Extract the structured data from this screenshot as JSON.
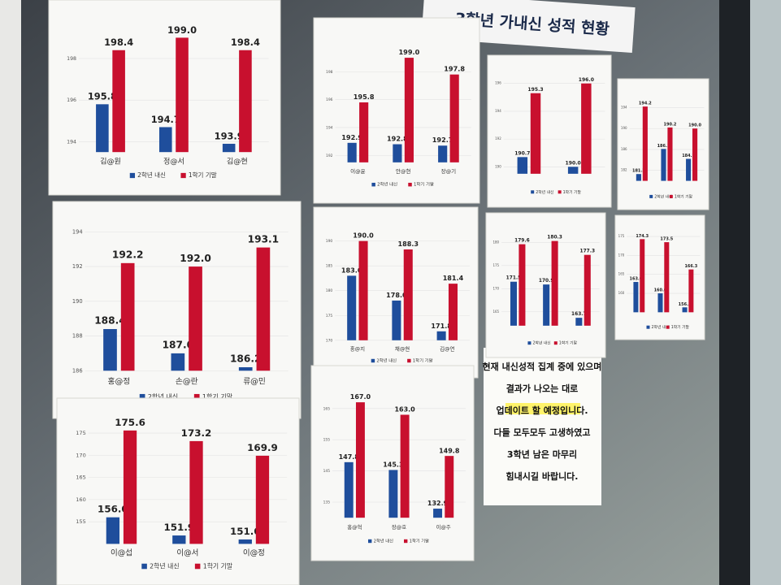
{
  "sign": {
    "text": "3학년 가내신 성적 현황"
  },
  "notice": {
    "lines": [
      "현재 내신성적 집계 중에 있으며",
      "결과가 나오는 대로",
      "업데이트 할 예정입니다.",
      "다들 모두모두 고생하였고",
      "3학년 남은 마무리",
      "힘내시길 바랍니다."
    ]
  },
  "chart_data": [
    {
      "type": "bar",
      "categories": [
        "김@원",
        "정@서",
        "김@현"
      ],
      "ylim": [
        193.5,
        199.5
      ],
      "yticks": [
        194,
        196,
        198
      ],
      "legend": "bottom",
      "series": [
        {
          "name": "2학년 내신",
          "color": "#1f4e9c",
          "values": [
            195.8,
            194.7,
            193.9
          ],
          "value_labels": [
            "195.8",
            "194.7",
            "193.9"
          ]
        },
        {
          "name": "1학기 기말",
          "color": "#c8102e",
          "values": [
            198.4,
            199.0,
            198.4
          ],
          "value_labels": [
            "198.4",
            "199.0",
            "198.4"
          ]
        }
      ]
    },
    {
      "type": "bar",
      "categories": [
        "이@윤",
        "안@현",
        "장@기"
      ],
      "ylim": [
        191.5,
        200
      ],
      "yticks": [
        192,
        194,
        196,
        198
      ],
      "legend": "bottom",
      "series": [
        {
          "name": "2학년 내신",
          "color": "#1f4e9c",
          "values": [
            192.9,
            192.8,
            192.7
          ],
          "value_labels": [
            "192.9",
            "192.8",
            "192.7"
          ]
        },
        {
          "name": "1학기 기말",
          "color": "#c8102e",
          "values": [
            195.8,
            199.0,
            197.8
          ],
          "value_labels": [
            "195.8",
            "199.0",
            "197.8"
          ]
        }
      ]
    },
    {
      "type": "bar",
      "categories": [
        null,
        null
      ],
      "ylim": [
        189.5,
        196.5
      ],
      "yticks": [
        190,
        192,
        194,
        196
      ],
      "legend": "bottom",
      "series": [
        {
          "name": "2학년 내신",
          "color": "#1f4e9c",
          "values": [
            190.7,
            190.0
          ],
          "value_labels": [
            "190.7",
            "190.0"
          ]
        },
        {
          "name": "1학기 기말",
          "color": "#c8102e",
          "values": [
            195.3,
            196.0
          ],
          "value_labels": [
            "195.3",
            "196.0"
          ]
        }
      ]
    },
    {
      "type": "bar",
      "categories": [
        "홍@정",
        "손@란",
        "류@민"
      ],
      "ylim": [
        186,
        194
      ],
      "yticks": [
        186,
        188,
        190,
        192,
        194
      ],
      "legend": "bottom",
      "series": [
        {
          "name": "2학년 내신",
          "color": "#1f4e9c",
          "values": [
            188.4,
            187.0,
            186.2
          ],
          "value_labels": [
            "188.4",
            "187.0",
            "186.2"
          ]
        },
        {
          "name": "1학기 기말",
          "color": "#c8102e",
          "values": [
            192.2,
            192.0,
            193.1
          ],
          "value_labels": [
            "192.2",
            "192.0",
            "193.1"
          ]
        }
      ]
    },
    {
      "type": "bar",
      "categories": [
        "홍@지",
        "채@현",
        "김@연"
      ],
      "ylim": [
        170,
        192
      ],
      "yticks": [
        170,
        175,
        180,
        185,
        190
      ],
      "legend": "bottom",
      "series": [
        {
          "name": "2학년 내신",
          "color": "#1f4e9c",
          "values": [
            183.0,
            178.0,
            171.8
          ],
          "value_labels": [
            "183.0",
            "178.0",
            "171.8"
          ]
        },
        {
          "name": "1학기 기말",
          "color": "#c8102e",
          "values": [
            190.0,
            188.3,
            181.4
          ],
          "value_labels": [
            "190.0",
            "188.3",
            "181.4"
          ]
        }
      ]
    },
    {
      "type": "bar",
      "categories": [
        null,
        null,
        null
      ],
      "ylim": [
        162,
        182
      ],
      "yticks": [
        165,
        170,
        175,
        180
      ],
      "legend": "bottom",
      "series": [
        {
          "name": "2학년 내신",
          "color": "#1f4e9c",
          "values": [
            171.5,
            170.9,
            163.7
          ],
          "value_labels": [
            "171.5",
            "170.9",
            "163.7"
          ]
        },
        {
          "name": "1학기 기말",
          "color": "#c8102e",
          "values": [
            179.6,
            180.3,
            177.3
          ],
          "value_labels": [
            "179.6",
            "180.3",
            "177.3"
          ]
        }
      ]
    },
    {
      "type": "bar",
      "categories": [
        "이@섭",
        "이@서",
        "이@정"
      ],
      "ylim": [
        150,
        177
      ],
      "yticks": [
        155,
        160,
        165,
        170,
        175
      ],
      "legend": "bottom",
      "series": [
        {
          "name": "2학년 내신",
          "color": "#1f4e9c",
          "values": [
            156.0,
            151.9,
            151.0
          ],
          "value_labels": [
            "156.0",
            "151.9",
            "151.0"
          ]
        },
        {
          "name": "1학기 기말",
          "color": "#c8102e",
          "values": [
            175.6,
            173.2,
            169.9
          ],
          "value_labels": [
            "175.6",
            "173.2",
            "169.9"
          ]
        }
      ]
    },
    {
      "type": "bar",
      "categories": [
        "홍@혁",
        "장@호",
        "이@주"
      ],
      "ylim": [
        130,
        170
      ],
      "yticks": [
        135,
        145,
        155,
        165
      ],
      "legend": "bottom",
      "series": [
        {
          "name": "2학년 내신",
          "color": "#1f4e9c",
          "values": [
            147.8,
            145.3,
            132.9
          ],
          "value_labels": [
            "147.8",
            "145.3",
            "132.9"
          ]
        },
        {
          "name": "1학기 기말",
          "color": "#c8102e",
          "values": [
            167.0,
            163.0,
            149.8
          ],
          "value_labels": [
            "167.0",
            "163.0",
            "149.8"
          ]
        }
      ]
    },
    {
      "type": "bar",
      "categories": [
        null,
        null,
        null
      ],
      "ylim": [
        180,
        196
      ],
      "yticks": [
        182,
        186,
        190,
        194
      ],
      "legend": "bottom",
      "series": [
        {
          "name": "2학년 내신",
          "color": "#1f4e9c",
          "values": [
            181.3,
            186.1,
            184.2
          ],
          "value_labels": [
            "181.3",
            "186.1",
            "184.2"
          ]
        },
        {
          "name": "1학기 기말",
          "color": "#c8102e",
          "values": [
            194.2,
            190.2,
            190.0
          ],
          "value_labels": [
            "194.2",
            "190.2",
            "190.0"
          ]
        }
      ]
    },
    {
      "type": "bar",
      "categories": [
        null,
        null,
        null
      ],
      "ylim": [
        155,
        176
      ],
      "yticks": [
        160,
        165,
        170,
        175
      ],
      "legend": "bottom",
      "series": [
        {
          "name": "2학년 내신",
          "color": "#1f4e9c",
          "values": [
            163.0,
            160.0,
            156.3
          ],
          "value_labels": [
            "163.0",
            "160.0",
            "156.3"
          ]
        },
        {
          "name": "1학기 기말",
          "color": "#c8102e",
          "values": [
            174.3,
            173.5,
            166.3
          ],
          "value_labels": [
            "174.3",
            "173.5",
            "166.3"
          ]
        }
      ]
    }
  ]
}
